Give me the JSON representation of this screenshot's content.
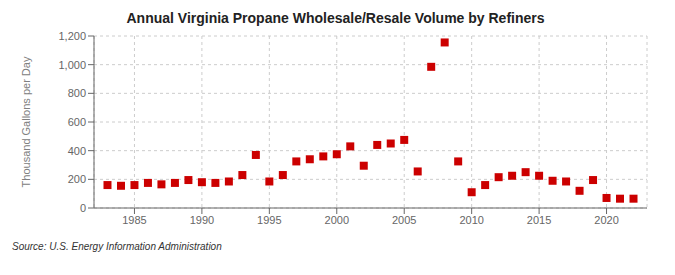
{
  "chart_data": {
    "type": "scatter",
    "title": "Annual Virginia Propane Wholesale/Resale Volume by Refiners",
    "y_label": "Thousand Gallons per Day",
    "annotations": [
      "Source: U.S. Energy Information Administration"
    ],
    "x": [
      1983,
      1984,
      1985,
      1986,
      1987,
      1988,
      1989,
      1990,
      1991,
      1992,
      1993,
      1994,
      1995,
      1996,
      1997,
      1998,
      1999,
      2000,
      2001,
      2002,
      2003,
      2004,
      2005,
      2006,
      2007,
      2008,
      2009,
      2010,
      2011,
      2012,
      2013,
      2014,
      2015,
      2016,
      2017,
      2018,
      2019,
      2020,
      2021,
      2022
    ],
    "values": [
      160,
      155,
      160,
      175,
      165,
      175,
      195,
      180,
      175,
      185,
      230,
      370,
      185,
      230,
      325,
      340,
      360,
      375,
      430,
      295,
      440,
      450,
      475,
      255,
      985,
      1155,
      325,
      110,
      160,
      215,
      225,
      250,
      225,
      190,
      185,
      120,
      195,
      70,
      65,
      65
    ],
    "color": "#cc0000",
    "marker": "square",
    "xlim": [
      1982,
      2023
    ],
    "xticks": [
      1985,
      1990,
      1995,
      2000,
      2005,
      2010,
      2015,
      2020
    ],
    "ylim": [
      0,
      1200
    ],
    "yticks": [
      0,
      200,
      400,
      600,
      800,
      {
        "value": 1000,
        "label": "1,000"
      },
      {
        "value": 1200,
        "label": "1,200"
      }
    ],
    "grid": true
  }
}
